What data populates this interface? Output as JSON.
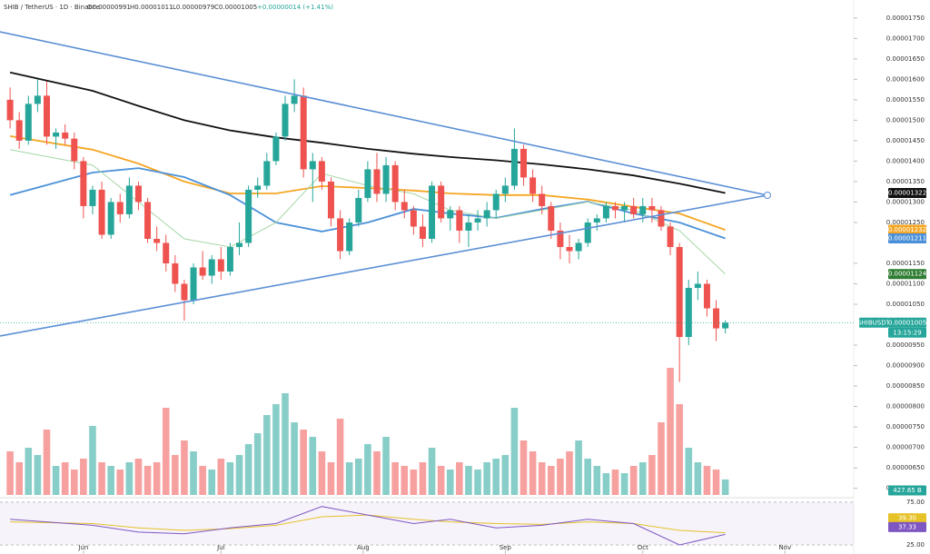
{
  "chart_data": {
    "type": "candlestick",
    "title": "SHIB / TetherUS · 1D · Binance",
    "ohlc_labels": [
      "O0.00000991",
      "H0.00001011",
      "L0.00000979",
      "C0.00001005"
    ],
    "change_label": "+0.00000014 (+1.41%)",
    "symbol_tag": "SHIBUSDT",
    "last_price_label": "0.00001005",
    "countdown": "13:15:29",
    "up_color": "#26a69a",
    "down_color": "#ef5350",
    "grid": false,
    "xlim": [
      -1.1,
      92
    ],
    "xticks": [
      {
        "value": 8,
        "label": "Jun"
      },
      {
        "value": 23,
        "label": "Jul"
      },
      {
        "value": 38.5,
        "label": "Aug"
      },
      {
        "value": 54,
        "label": "Sep"
      },
      {
        "value": 69,
        "label": "Oct"
      },
      {
        "value": 84.5,
        "label": "Nov"
      }
    ],
    "ylim": [
      5.77e-06,
      1.794e-05
    ],
    "yticks": [
      {
        "value": 1.75e-05,
        "label": "0.00001750"
      },
      {
        "value": 1.7e-05,
        "label": "0.00001700"
      },
      {
        "value": 1.65e-05,
        "label": "0.00001650"
      },
      {
        "value": 1.6e-05,
        "label": "0.00001600"
      },
      {
        "value": 1.55e-05,
        "label": "0.00001550"
      },
      {
        "value": 1.5e-05,
        "label": "0.00001500"
      },
      {
        "value": 1.45e-05,
        "label": "0.00001450"
      },
      {
        "value": 1.4e-05,
        "label": "0.00001400"
      },
      {
        "value": 1.35e-05,
        "label": "0.00001350"
      },
      {
        "value": 1.3e-05,
        "label": "0.00001300"
      },
      {
        "value": 1.25e-05,
        "label": "0.00001250"
      },
      {
        "value": 1.15e-05,
        "label": "0.00001150"
      },
      {
        "value": 1.1e-05,
        "label": "0.00001100"
      },
      {
        "value": 1.05e-05,
        "label": "0.00001050"
      },
      {
        "value": 9.5e-06,
        "label": "0.00000950"
      },
      {
        "value": 9e-06,
        "label": "0.00000900"
      },
      {
        "value": 8.5e-06,
        "label": "0.00000850"
      },
      {
        "value": 8e-06,
        "label": "0.00000800"
      },
      {
        "value": 7.5e-06,
        "label": "0.00000750"
      },
      {
        "value": 7e-06,
        "label": "0.00000700"
      },
      {
        "value": 6.5e-06,
        "label": "0.00000650"
      },
      {
        "value": 6e-06,
        "label": "0.00000600"
      }
    ],
    "x": [
      0,
      1,
      2,
      3,
      4,
      5,
      6,
      7,
      8,
      9,
      10,
      11,
      12,
      13,
      14,
      15,
      16,
      17,
      18,
      19,
      20,
      21,
      22,
      23,
      24,
      25,
      26,
      27,
      28,
      29,
      30,
      31,
      32,
      33,
      34,
      35,
      36,
      37,
      38,
      39,
      40,
      41,
      42,
      43,
      44,
      45,
      46,
      47,
      48,
      49,
      50,
      51,
      52,
      53,
      54,
      55,
      56,
      57,
      58,
      59,
      60,
      61,
      62,
      63,
      64,
      65,
      66,
      67,
      68,
      69,
      70,
      71,
      72,
      73,
      74,
      75,
      76,
      77,
      78
    ],
    "open": [
      1.55e-05,
      1.5e-05,
      1.45e-05,
      1.54e-05,
      1.56e-05,
      1.46e-05,
      1.47e-05,
      1.455e-05,
      1.4e-05,
      1.29e-05,
      1.33e-05,
      1.22e-05,
      1.3e-05,
      1.27e-05,
      1.34e-05,
      1.3e-05,
      1.21e-05,
      1.2e-05,
      1.15e-05,
      1.1e-05,
      1.06e-05,
      1.14e-05,
      1.12e-05,
      1.16e-05,
      1.13e-05,
      1.19e-05,
      1.2e-05,
      1.33e-05,
      1.34e-05,
      1.4e-05,
      1.46e-05,
      1.54e-05,
      1.56e-05,
      1.38e-05,
      1.4e-05,
      1.35e-05,
      1.26e-05,
      1.18e-05,
      1.25e-05,
      1.31e-05,
      1.38e-05,
      1.32e-05,
      1.39e-05,
      1.3e-05,
      1.28e-05,
      1.24e-05,
      1.21e-05,
      1.34e-05,
      1.26e-05,
      1.28e-05,
      1.23e-05,
      1.25e-05,
      1.26e-05,
      1.28e-05,
      1.32e-05,
      1.34e-05,
      1.43e-05,
      1.36e-05,
      1.32e-05,
      1.29e-05,
      1.23e-05,
      1.19e-05,
      1.18e-05,
      1.2e-05,
      1.25e-05,
      1.26e-05,
      1.29e-05,
      1.28e-05,
      1.29e-05,
      1.27e-05,
      1.29e-05,
      1.28e-05,
      1.24e-05,
      1.19e-05,
      9.7e-06,
      1.09e-05,
      1.1e-05,
      1.04e-05,
      9.91e-06
    ],
    "high": [
      1.58e-05,
      1.52e-05,
      1.56e-05,
      1.6e-05,
      1.595e-05,
      1.48e-05,
      1.49e-05,
      1.47e-05,
      1.41e-05,
      1.34e-05,
      1.35e-05,
      1.31e-05,
      1.32e-05,
      1.36e-05,
      1.35e-05,
      1.31e-05,
      1.24e-05,
      1.22e-05,
      1.17e-05,
      1.11e-05,
      1.15e-05,
      1.18e-05,
      1.17e-05,
      1.19e-05,
      1.2e-05,
      1.25e-05,
      1.34e-05,
      1.36e-05,
      1.42e-05,
      1.47e-05,
      1.56e-05,
      1.6e-05,
      1.58e-05,
      1.42e-05,
      1.41e-05,
      1.36e-05,
      1.28e-05,
      1.26e-05,
      1.33e-05,
      1.4e-05,
      1.42e-05,
      1.41e-05,
      1.4e-05,
      1.33e-05,
      1.29e-05,
      1.27e-05,
      1.35e-05,
      1.35e-05,
      1.29e-05,
      1.29e-05,
      1.27e-05,
      1.28e-05,
      1.3e-05,
      1.33e-05,
      1.36e-05,
      1.48e-05,
      1.44e-05,
      1.38e-05,
      1.34e-05,
      1.3e-05,
      1.25e-05,
      1.22e-05,
      1.21e-05,
      1.26e-05,
      1.27e-05,
      1.3e-05,
      1.3e-05,
      1.3e-05,
      1.31e-05,
      1.31e-05,
      1.31e-05,
      1.29e-05,
      1.25e-05,
      1.2e-05,
      1.11e-05,
      1.13e-05,
      1.11e-05,
      1.06e-05,
      1.011e-05
    ],
    "low": [
      1.48e-05,
      1.43e-05,
      1.44e-05,
      1.52e-05,
      1.44e-05,
      1.43e-05,
      1.44e-05,
      1.38e-05,
      1.26e-05,
      1.27e-05,
      1.21e-05,
      1.21e-05,
      1.25e-05,
      1.26e-05,
      1.28e-05,
      1.2e-05,
      1.18e-05,
      1.13e-05,
      1.08e-05,
      1.01e-05,
      1.05e-05,
      1.11e-05,
      1.1e-05,
      1.11e-05,
      1.12e-05,
      1.17e-05,
      1.19e-05,
      1.31e-05,
      1.33e-05,
      1.39e-05,
      1.45e-05,
      1.52e-05,
      1.36e-05,
      1.3e-05,
      1.33e-05,
      1.24e-05,
      1.16e-05,
      1.17e-05,
      1.24e-05,
      1.3e-05,
      1.3e-05,
      1.3e-05,
      1.28e-05,
      1.26e-05,
      1.22e-05,
      1.19e-05,
      1.2e-05,
      1.25e-05,
      1.23e-05,
      1.2e-05,
      1.19e-05,
      1.23e-05,
      1.24e-05,
      1.26e-05,
      1.3e-05,
      1.33e-05,
      1.34e-05,
      1.3e-05,
      1.27e-05,
      1.21e-05,
      1.16e-05,
      1.15e-05,
      1.16e-05,
      1.19e-05,
      1.23e-05,
      1.25e-05,
      1.26e-05,
      1.25e-05,
      1.26e-05,
      1.25e-05,
      1.25e-05,
      1.23e-05,
      1.17e-05,
      8.6e-06,
      9.5e-06,
      1.06e-05,
      1.02e-05,
      9.6e-06,
      9.79e-06
    ],
    "close": [
      1.5e-05,
      1.45e-05,
      1.54e-05,
      1.56e-05,
      1.46e-05,
      1.47e-05,
      1.455e-05,
      1.4e-05,
      1.29e-05,
      1.33e-05,
      1.22e-05,
      1.3e-05,
      1.27e-05,
      1.34e-05,
      1.3e-05,
      1.21e-05,
      1.2e-05,
      1.15e-05,
      1.1e-05,
      1.06e-05,
      1.14e-05,
      1.12e-05,
      1.16e-05,
      1.13e-05,
      1.19e-05,
      1.2e-05,
      1.33e-05,
      1.34e-05,
      1.4e-05,
      1.46e-05,
      1.54e-05,
      1.56e-05,
      1.38e-05,
      1.4e-05,
      1.35e-05,
      1.26e-05,
      1.18e-05,
      1.25e-05,
      1.31e-05,
      1.38e-05,
      1.32e-05,
      1.39e-05,
      1.3e-05,
      1.28e-05,
      1.24e-05,
      1.21e-05,
      1.34e-05,
      1.26e-05,
      1.28e-05,
      1.23e-05,
      1.25e-05,
      1.26e-05,
      1.28e-05,
      1.32e-05,
      1.34e-05,
      1.43e-05,
      1.36e-05,
      1.32e-05,
      1.29e-05,
      1.23e-05,
      1.19e-05,
      1.18e-05,
      1.2e-05,
      1.25e-05,
      1.26e-05,
      1.29e-05,
      1.28e-05,
      1.29e-05,
      1.27e-05,
      1.29e-05,
      1.28e-05,
      1.24e-05,
      1.19e-05,
      9.7e-06,
      1.09e-05,
      1.1e-05,
      1.04e-05,
      9.91e-06,
      1.005e-05
    ],
    "ma_x": [
      0,
      9,
      14,
      19,
      24,
      29,
      34,
      39,
      44,
      48,
      53,
      58,
      63,
      68,
      73,
      78
    ],
    "lines": [
      {
        "color": "#111111",
        "last_label": "0.00001322",
        "values": [
          1.617e-05,
          1.572e-05,
          1.535e-05,
          1.5e-05,
          1.475e-05,
          1.458e-05,
          1.445e-05,
          1.43e-05,
          1.418e-05,
          1.41e-05,
          1.402e-05,
          1.392e-05,
          1.38e-05,
          1.365e-05,
          1.345e-05,
          1.322e-05
        ]
      },
      {
        "color": "#f5a623",
        "last_label": "0.00001232",
        "values": [
          1.461e-05,
          1.428e-05,
          1.394e-05,
          1.35e-05,
          1.321e-05,
          1.321e-05,
          1.339e-05,
          1.334e-05,
          1.328e-05,
          1.321e-05,
          1.317e-05,
          1.317e-05,
          1.306e-05,
          1.288e-05,
          1.272e-05,
          1.232e-05
        ]
      },
      {
        "color": "#4a90d9",
        "last_label": "0.00001211",
        "values": [
          1.317e-05,
          1.372e-05,
          1.383e-05,
          1.361e-05,
          1.317e-05,
          1.25e-05,
          1.228e-05,
          1.25e-05,
          1.283e-05,
          1.272e-05,
          1.261e-05,
          1.283e-05,
          1.301e-05,
          1.272e-05,
          1.25e-05,
          1.211e-05
        ]
      },
      {
        "color": "#a5d6a7",
        "last_label": "0.00001124",
        "tag_color": "#2e7d32",
        "values": [
          1.428e-05,
          1.39e-05,
          1.3e-05,
          1.21e-05,
          1.19e-05,
          1.25e-05,
          1.37e-05,
          1.34e-05,
          1.32e-05,
          1.28e-05,
          1.26e-05,
          1.28e-05,
          1.3e-05,
          1.28e-05,
          1.23e-05,
          1.124e-05
        ]
      }
    ],
    "volume": {
      "ylim": [
        0,
        13625
      ],
      "last_value_label": "427.65 B",
      "values": [
        1200,
        900,
        1300,
        1100,
        1800,
        800,
        900,
        700,
        1000,
        1900,
        900,
        800,
        700,
        900,
        1000,
        800,
        900,
        2400,
        1100,
        1500,
        1200,
        800,
        700,
        1000,
        900,
        1100,
        1400,
        1700,
        2200,
        2500,
        2800,
        2000,
        1800,
        1600,
        1200,
        900,
        2100,
        900,
        1000,
        1400,
        1200,
        1600,
        900,
        800,
        700,
        900,
        1300,
        800,
        700,
        900,
        800,
        700,
        900,
        1000,
        1100,
        2400,
        1500,
        1200,
        900,
        800,
        1000,
        1200,
        1500,
        1000,
        800,
        600,
        700,
        600,
        800,
        900,
        1100,
        2000,
        3500,
        2500,
        1300,
        900,
        800,
        700,
        427.65
      ]
    },
    "rsi": {
      "ylim": [
        19.7,
        80.3
      ],
      "color": "#7e57c2",
      "last_label": "37.33",
      "yticks": [
        {
          "value": 75,
          "label": "75.00"
        },
        {
          "value": 25,
          "label": "25.00"
        }
      ],
      "values": [
        55,
        48,
        40,
        38,
        45,
        50,
        70,
        60,
        50,
        55,
        45,
        48,
        55,
        50,
        25,
        37.33
      ],
      "ma": {
        "color": "#e6c229",
        "last_label": "39.30",
        "values": [
          52,
          50,
          45,
          42,
          44,
          48,
          58,
          60,
          55,
          52,
          50,
          49,
          52,
          50,
          42,
          39.3
        ]
      }
    }
  }
}
